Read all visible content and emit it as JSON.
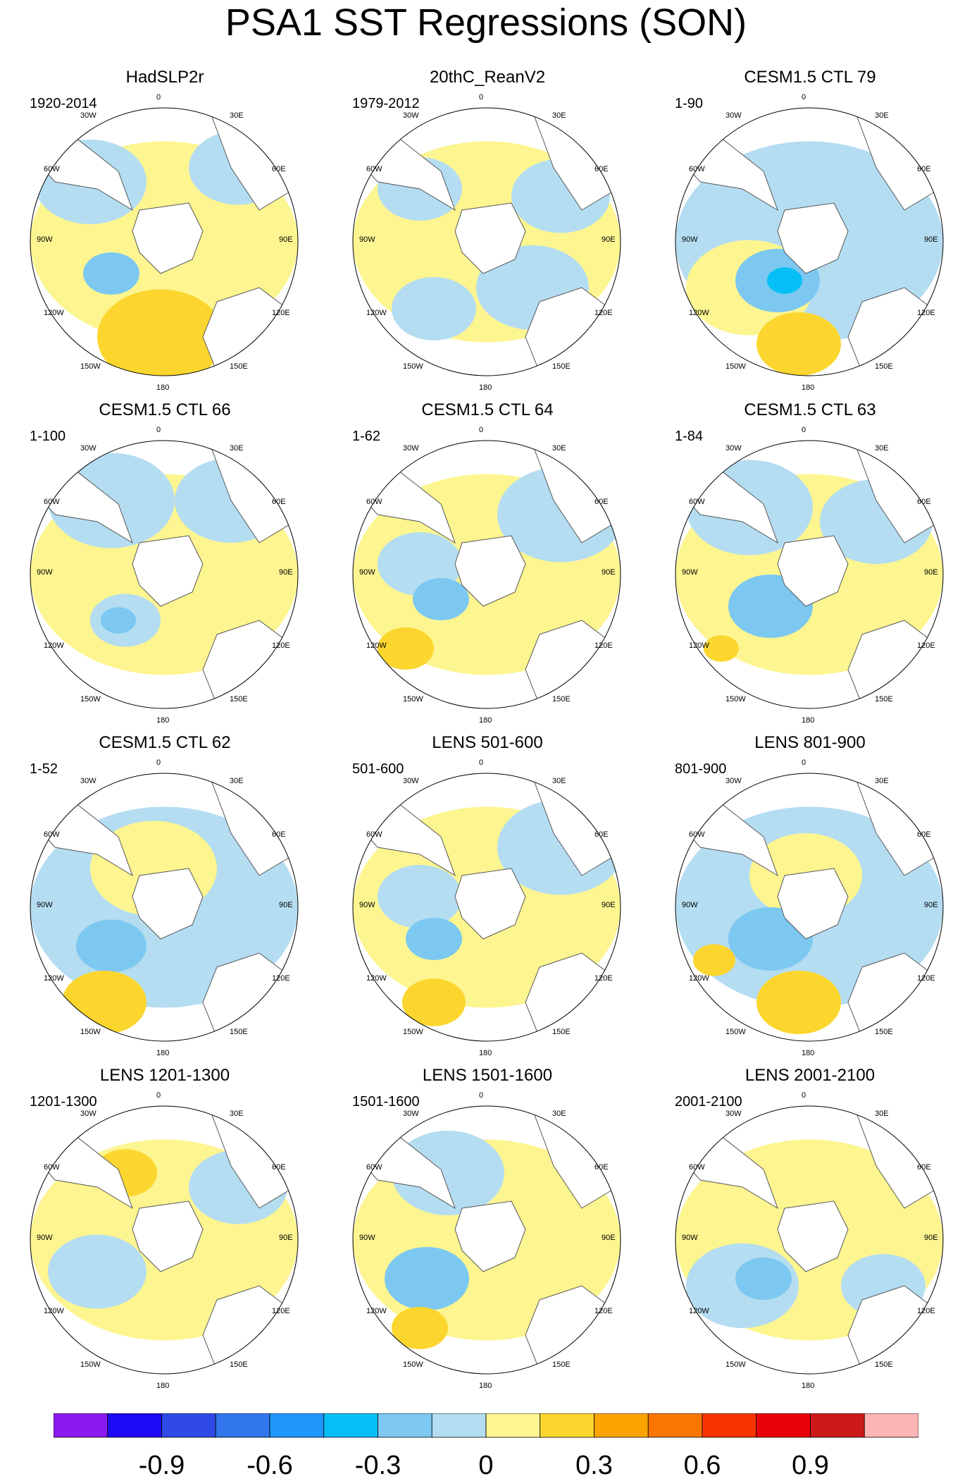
{
  "title": "PSA1 SST Regressions (SON)",
  "map_labels": {
    "top": "0",
    "bottom": "180",
    "left_upper": "60W",
    "left_mid": "90W",
    "left_lower": "120W",
    "right_upper": "60E",
    "right_mid": "90E",
    "right_lower": "120E",
    "top_left": "30W",
    "top_right": "30E",
    "bottom_left": "150W",
    "bottom_right": "150E"
  },
  "panels": [
    {
      "title": "HadSLP2r",
      "period": "1920-2014"
    },
    {
      "title": "20thC_ReanV2",
      "period": "1979-2012"
    },
    {
      "title": "CESM1.5 CTL 79",
      "period": "1-90"
    },
    {
      "title": "CESM1.5 CTL 66",
      "period": "1-100"
    },
    {
      "title": "CESM1.5 CTL 64",
      "period": "1-62"
    },
    {
      "title": "CESM1.5 CTL 63",
      "period": "1-84"
    },
    {
      "title": "CESM1.5 CTL 62",
      "period": "1-52"
    },
    {
      "title": "LENS 501-600",
      "period": "501-600"
    },
    {
      "title": "LENS 801-900",
      "period": "801-900"
    },
    {
      "title": "LENS 1201-1300",
      "period": "1201-1300"
    },
    {
      "title": "LENS 1501-1600",
      "period": "1501-1600"
    },
    {
      "title": "LENS 2001-2100",
      "period": "2001-2100"
    }
  ],
  "chart_data": {
    "type": "heatmap",
    "projection": "south polar stereographic",
    "colorbar": {
      "colors": [
        "#8a1af0",
        "#1e0af5",
        "#2f4ae6",
        "#3276ec",
        "#1f96fb",
        "#06bff6",
        "#7cc8f1",
        "#b4ddf2",
        "#fdf590",
        "#fcd62e",
        "#fba400",
        "#fb7600",
        "#fa3400",
        "#e8000b",
        "#cc1a1a",
        "#fdb4b4"
      ],
      "tick_labels": [
        "-0.9",
        "-0.6",
        "-0.3",
        "0",
        "0.3",
        "0.6",
        "0.9"
      ]
    }
  }
}
